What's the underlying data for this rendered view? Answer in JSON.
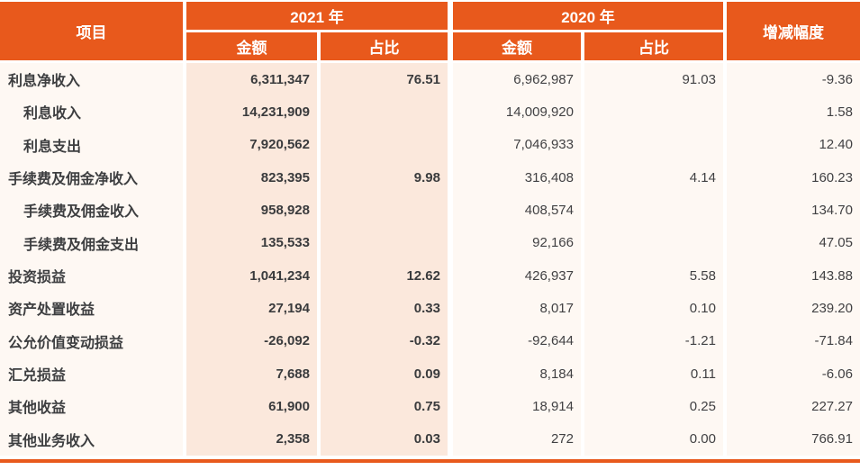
{
  "table": {
    "header": {
      "item": "项目",
      "year2021": "2021 年",
      "year2020": "2020 年",
      "amount2021": "金额",
      "ratio2021": "占比",
      "amount2020": "金额",
      "ratio2020": "占比",
      "change": "增减幅度"
    },
    "rows": [
      {
        "label": "利息净收入",
        "indent": false,
        "a21": "6,311,347",
        "r21": "76.51",
        "a20": "6,962,987",
        "r20": "91.03",
        "chg": "-9.36"
      },
      {
        "label": "利息收入",
        "indent": true,
        "a21": "14,231,909",
        "r21": "",
        "a20": "14,009,920",
        "r20": "",
        "chg": "1.58"
      },
      {
        "label": "利息支出",
        "indent": true,
        "a21": "7,920,562",
        "r21": "",
        "a20": "7,046,933",
        "r20": "",
        "chg": "12.40"
      },
      {
        "label": "手续费及佣金净收入",
        "indent": false,
        "a21": "823,395",
        "r21": "9.98",
        "a20": "316,408",
        "r20": "4.14",
        "chg": "160.23"
      },
      {
        "label": "手续费及佣金收入",
        "indent": true,
        "a21": "958,928",
        "r21": "",
        "a20": "408,574",
        "r20": "",
        "chg": "134.70"
      },
      {
        "label": "手续费及佣金支出",
        "indent": true,
        "a21": "135,533",
        "r21": "",
        "a20": "92,166",
        "r20": "",
        "chg": "47.05"
      },
      {
        "label": "投资损益",
        "indent": false,
        "a21": "1,041,234",
        "r21": "12.62",
        "a20": "426,937",
        "r20": "5.58",
        "chg": "143.88"
      },
      {
        "label": "资产处置收益",
        "indent": false,
        "a21": "27,194",
        "r21": "0.33",
        "a20": "8,017",
        "r20": "0.10",
        "chg": "239.20"
      },
      {
        "label": "公允价值变动损益",
        "indent": false,
        "a21": "-26,092",
        "r21": "-0.32",
        "a20": "-92,644",
        "r20": "-1.21",
        "chg": "-71.84"
      },
      {
        "label": "汇兑损益",
        "indent": false,
        "a21": "7,688",
        "r21": "0.09",
        "a20": "8,184",
        "r20": "0.11",
        "chg": "-6.06"
      },
      {
        "label": "其他收益",
        "indent": false,
        "a21": "61,900",
        "r21": "0.75",
        "a20": "18,914",
        "r20": "0.25",
        "chg": "227.27"
      },
      {
        "label": "其他业务收入",
        "indent": false,
        "a21": "2,358",
        "r21": "0.03",
        "a20": "272",
        "r20": "0.00",
        "chg": "766.91"
      }
    ],
    "colors": {
      "header_orange": "#E8591C",
      "band_peach_2021": "#FBE8DC",
      "band_light": "#FEF8F3",
      "text_dark": "#3D3E40",
      "bottom_rule": "#E8591C"
    }
  }
}
